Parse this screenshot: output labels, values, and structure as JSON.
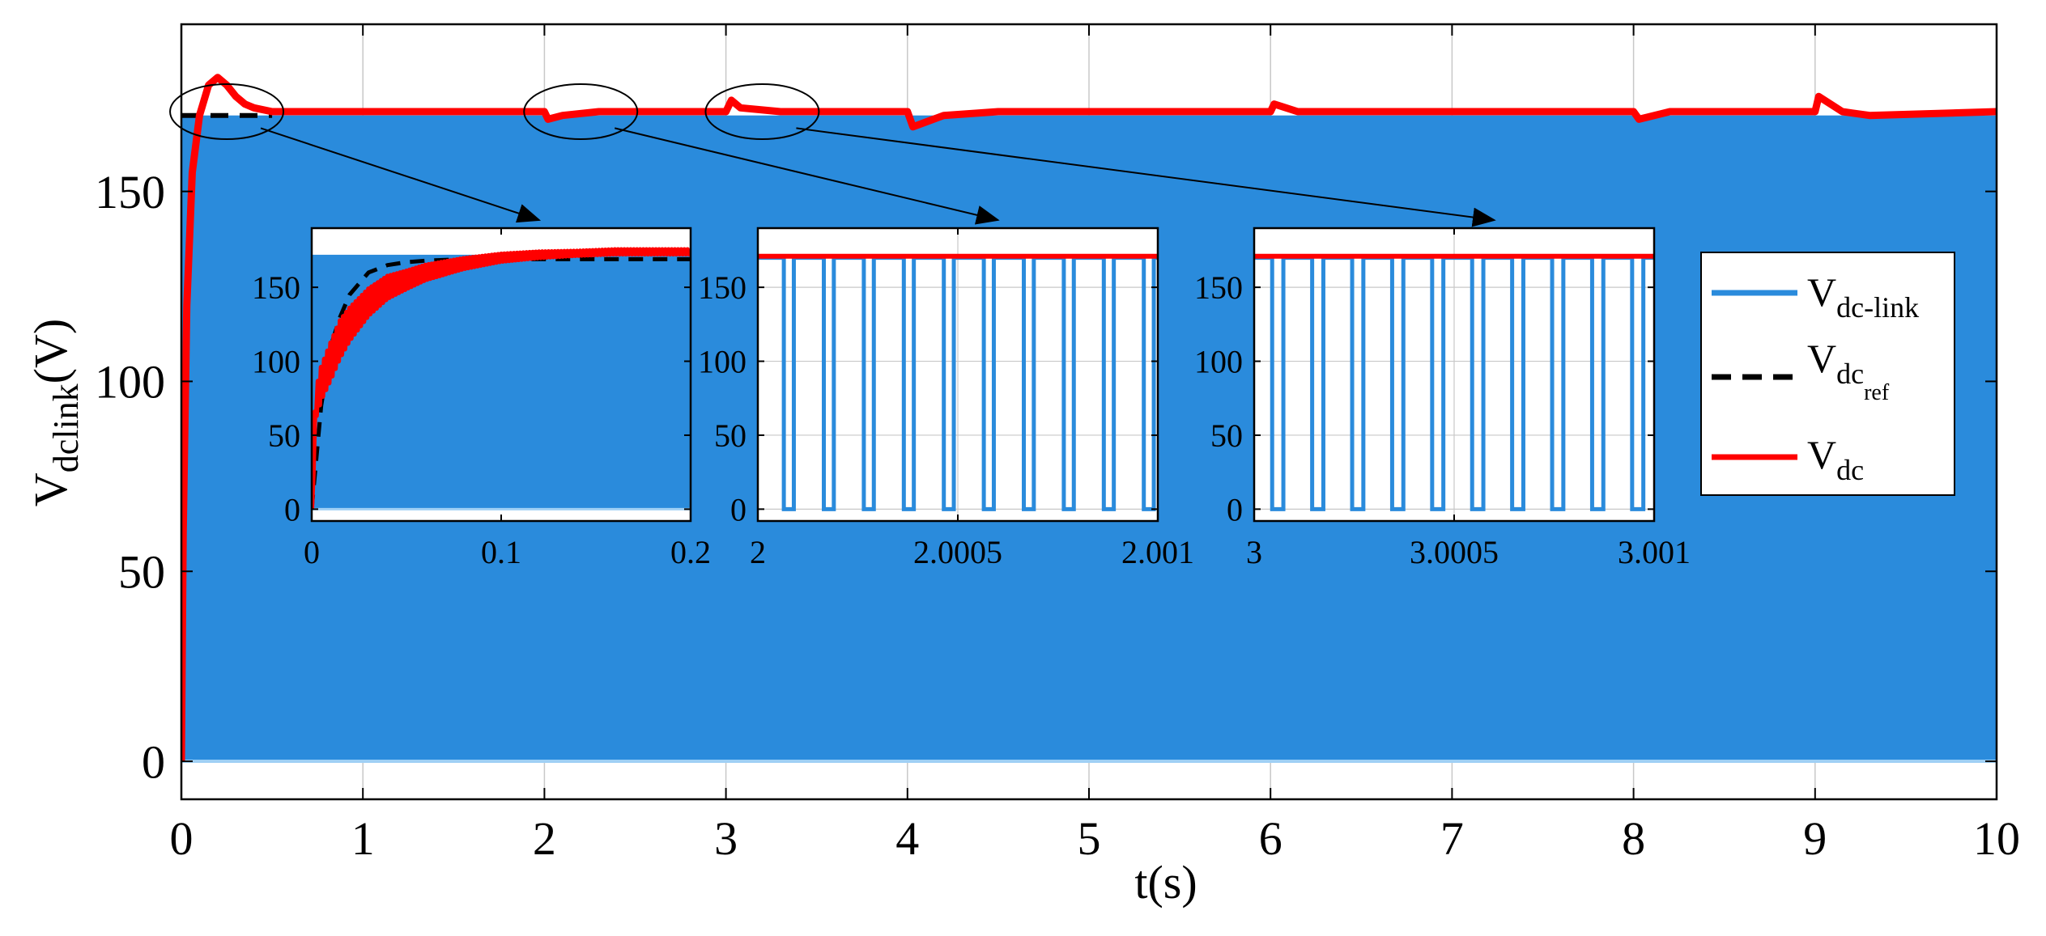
{
  "colors": {
    "vdc_link": "#2a8bdc",
    "vdc_ref": "#000000",
    "vdc": "#ff0000",
    "grid": "#c8c8c8",
    "axes": "#000000"
  },
  "chart_data": [
    {
      "id": "main",
      "type": "line",
      "xlabel": "t(s)",
      "ylabel_main": "V",
      "ylabel_sub": "dclink",
      "ylabel_suffix": "(V)",
      "xlim": [
        0,
        10
      ],
      "ylim": [
        -10,
        194
      ],
      "grid": "x",
      "x_ticks": [
        0,
        1,
        2,
        3,
        4,
        5,
        6,
        7,
        8,
        9,
        10
      ],
      "y_ticks": [
        0,
        50,
        100,
        150
      ],
      "series": [
        {
          "key": "vdc_link",
          "kind": "switching_band",
          "low": 0,
          "high": 170
        },
        {
          "key": "vdc_ref",
          "kind": "dashed",
          "x": [
            0,
            0.02,
            0.5
          ],
          "y": [
            170,
            170,
            170
          ]
        },
        {
          "key": "vdc",
          "kind": "solid",
          "x": [
            0,
            0.01,
            0.03,
            0.06,
            0.1,
            0.15,
            0.2,
            0.25,
            0.3,
            0.35,
            0.4,
            0.5,
            0.6,
            0.8,
            1.0,
            2.0,
            2.02,
            2.1,
            2.3,
            3.0,
            3.03,
            3.08,
            3.3,
            4.0,
            4.03,
            4.2,
            4.5,
            6.0,
            6.02,
            6.15,
            7.0,
            8.0,
            8.03,
            8.2,
            9.0,
            9.02,
            9.15,
            9.3,
            10.0
          ],
          "y": [
            0,
            60,
            120,
            155,
            170,
            178,
            180,
            178,
            175,
            173,
            172,
            171,
            171,
            171,
            171,
            171,
            169,
            170,
            171,
            171,
            174,
            172,
            171,
            171,
            167,
            170,
            171,
            171,
            173,
            171,
            171,
            171,
            169,
            171,
            171,
            175,
            171,
            170,
            171
          ]
        }
      ],
      "zoom_regions": [
        {
          "cx": 0.25,
          "cy": 171,
          "target": "inset1"
        },
        {
          "cx": 2.2,
          "cy": 171,
          "target": "inset2"
        },
        {
          "cx": 3.2,
          "cy": 171,
          "target": "inset3"
        }
      ]
    },
    {
      "id": "inset1",
      "type": "line",
      "xlim": [
        0,
        0.2
      ],
      "ylim": [
        -8,
        190
      ],
      "x_ticks": [
        0,
        0.1,
        0.2
      ],
      "y_ticks": [
        0,
        50,
        100,
        150
      ],
      "grid": "none",
      "series": [
        {
          "key": "vdc_link",
          "kind": "switching_band",
          "low": 0,
          "high": 172
        },
        {
          "key": "vdc_ref",
          "kind": "dashed",
          "x": [
            0,
            0.005,
            0.01,
            0.015,
            0.02,
            0.03,
            0.04,
            0.05,
            0.06,
            0.08,
            0.2
          ],
          "y": [
            0,
            70,
            110,
            130,
            145,
            160,
            165,
            167,
            168,
            169,
            169
          ]
        },
        {
          "key": "vdc",
          "kind": "solid_ripple",
          "x": [
            0,
            0.002,
            0.005,
            0.01,
            0.015,
            0.02,
            0.03,
            0.04,
            0.05,
            0.06,
            0.08,
            0.1,
            0.12,
            0.14,
            0.16,
            0.18,
            0.2
          ],
          "y": [
            0,
            70,
            85,
            100,
            115,
            125,
            140,
            150,
            155,
            160,
            166,
            170,
            172,
            173,
            174,
            174,
            174
          ],
          "amp": [
            0,
            18,
            22,
            25,
            25,
            22,
            18,
            15,
            12,
            10,
            7,
            5,
            4,
            3,
            3,
            3,
            3
          ]
        }
      ]
    },
    {
      "id": "inset2",
      "type": "line",
      "xlim": [
        2,
        2.001
      ],
      "ylim": [
        -8,
        190
      ],
      "x_ticks": [
        2,
        2.0005,
        2.001
      ],
      "y_ticks": [
        0,
        50,
        100,
        150
      ],
      "grid": "both",
      "series": [
        {
          "key": "vdc_link",
          "kind": "pulse_train",
          "low": 0,
          "high": 170,
          "period": 0.0001,
          "phase": 6.5e-05,
          "duty": 0.25
        },
        {
          "key": "vdc_ref",
          "kind": "dashed",
          "x": [
            2,
            2.001
          ],
          "y": [
            171,
            171
          ]
        },
        {
          "key": "vdc",
          "kind": "solid",
          "x": [
            2,
            2.001
          ],
          "y": [
            171,
            171
          ]
        }
      ]
    },
    {
      "id": "inset3",
      "type": "line",
      "xlim": [
        3,
        3.001
      ],
      "ylim": [
        -8,
        190
      ],
      "x_ticks": [
        3,
        3.0005,
        3.001
      ],
      "y_ticks": [
        0,
        50,
        100,
        150
      ],
      "grid": "both",
      "series": [
        {
          "key": "vdc_link",
          "kind": "pulse_train",
          "low": 0,
          "high": 170,
          "period": 0.0001,
          "phase": 4.5e-05,
          "duty": 0.28
        },
        {
          "key": "vdc_ref",
          "kind": "dashed",
          "x": [
            3,
            3.001
          ],
          "y": [
            171,
            171
          ]
        },
        {
          "key": "vdc",
          "kind": "solid",
          "x": [
            3,
            3.001
          ],
          "y": [
            171,
            171
          ]
        }
      ]
    }
  ],
  "legend": {
    "placement": "right",
    "entries": [
      {
        "key": "vdc_link",
        "main": "V",
        "sub": "dc-link",
        "subsub": "",
        "style": "solid"
      },
      {
        "key": "vdc_ref",
        "main": "V",
        "sub": "dc",
        "subsub": "ref",
        "style": "dashed"
      },
      {
        "key": "vdc",
        "main": "V",
        "sub": "dc",
        "subsub": "",
        "style": "solid"
      }
    ]
  }
}
